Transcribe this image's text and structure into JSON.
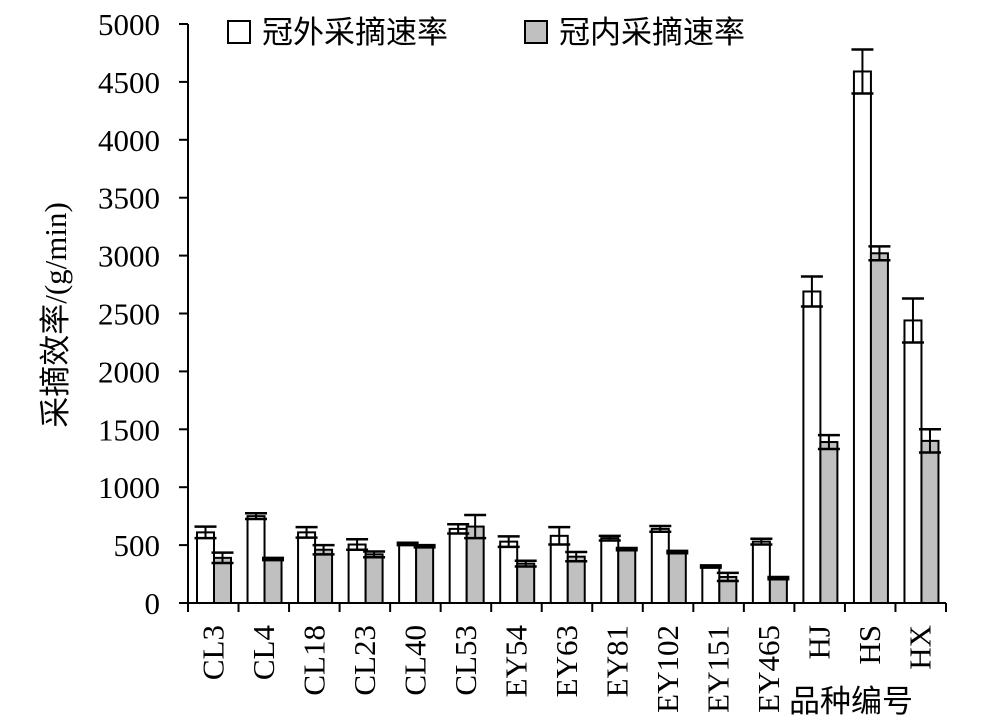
{
  "chart_data": {
    "type": "bar",
    "title": "",
    "ylabel": "采摘效率/(g/min)",
    "xlabel": "品种编号",
    "ylim": [
      0,
      5000
    ],
    "yticks": [
      0,
      500,
      1000,
      1500,
      2000,
      2500,
      3000,
      3500,
      4000,
      4500,
      5000
    ],
    "grid": false,
    "legend_position": "top-left",
    "categories": [
      "CL3",
      "CL4",
      "CL18",
      "CL23",
      "CL40",
      "CL53",
      "EY54",
      "EY63",
      "EY81",
      "EY102",
      "EY151",
      "EY465",
      "HJ",
      "HS",
      "HX"
    ],
    "series": [
      {
        "name": "冠外采摘速率",
        "color": "#ffffff",
        "values": [
          610,
          750,
          610,
          505,
          510,
          640,
          530,
          580,
          560,
          640,
          315,
          530,
          2690,
          4590,
          2440
        ],
        "errors": [
          50,
          25,
          45,
          45,
          10,
          40,
          45,
          75,
          20,
          25,
          10,
          25,
          130,
          190,
          190
        ]
      },
      {
        "name": "冠内采摘速率",
        "color": "#c0c0c0",
        "values": [
          390,
          380,
          460,
          420,
          490,
          660,
          340,
          400,
          465,
          440,
          225,
          215,
          1390,
          3020,
          1400
        ],
        "errors": [
          45,
          10,
          40,
          25,
          10,
          100,
          25,
          40,
          10,
          10,
          35,
          10,
          60,
          60,
          100
        ]
      }
    ]
  }
}
